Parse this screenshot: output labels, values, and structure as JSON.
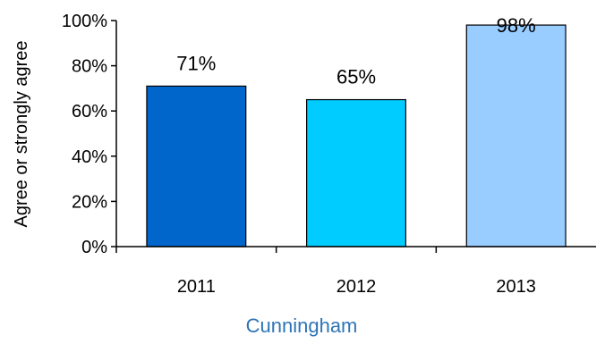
{
  "chart_data": {
    "type": "bar",
    "categories": [
      "2011",
      "2012",
      "2013"
    ],
    "values": [
      71,
      65,
      98
    ],
    "value_labels": [
      "71%",
      "65%",
      "98%"
    ],
    "bar_colors": [
      "#0066cc",
      "#00ccff",
      "#99ccff"
    ],
    "ylabel": "Agree or strongly agree",
    "xlabel": "Cunningham",
    "ylim": [
      0,
      100
    ],
    "yticks": [
      0,
      20,
      40,
      60,
      80,
      100
    ],
    "ytick_labels": [
      "0%",
      "20%",
      "40%",
      "60%",
      "80%",
      "100%"
    ],
    "grid": false
  }
}
